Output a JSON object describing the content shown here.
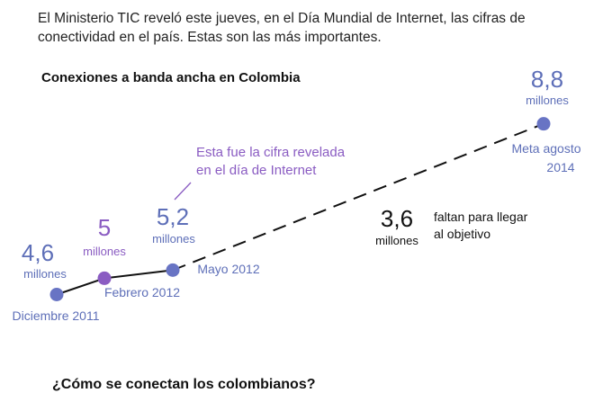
{
  "intro": "El Ministerio TIC reveló este jueves, en el Día Mundial de Internet, las cifras de conectividad en el país. Estas son las más importantes.",
  "chart_data": {
    "type": "line",
    "title": "Conexiones a banda ancha en Colombia",
    "unit": "millones",
    "x": [
      "Diciembre 2011",
      "Febrero 2012",
      "Mayo 2012",
      "Meta agosto 2014"
    ],
    "values": [
      4.6,
      5.0,
      5.2,
      8.8
    ],
    "value_labels": [
      "4,6",
      "5",
      "5,2",
      "8,8"
    ],
    "projection_from_index": 2,
    "annotation": "Esta fue la cifra revelada en el día de Internet",
    "gap": {
      "value": "3,6",
      "unit": "millones",
      "text": "faltan para llegar al objetivo"
    },
    "grid": false,
    "legend": "none"
  },
  "colors": {
    "point_blue": "#6874c4",
    "point_purple": "#8a5cc2",
    "label_blue": "#5e6fb8",
    "label_purple": "#8a5cc2",
    "line": "#111111",
    "gap_text": "#111111"
  },
  "next_section": {
    "title": "¿Cómo se conectan los colombianos?"
  }
}
